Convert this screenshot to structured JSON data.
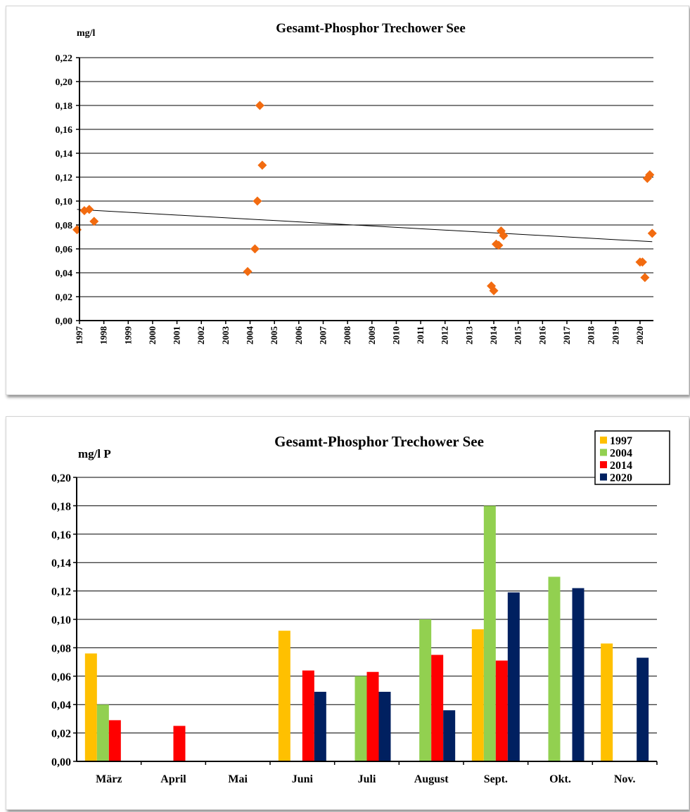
{
  "chart_data": [
    {
      "type": "scatter",
      "title": "Gesamt-Phosphor  Trechower  See",
      "ylabel": "mg/l",
      "xlabel": "",
      "ylim": [
        0,
        0.22
      ],
      "y_ticks": [
        "0,00",
        "0,02",
        "0,04",
        "0,06",
        "0,08",
        "0,10",
        "0,12",
        "0,14",
        "0,16",
        "0,18",
        "0,20",
        "0,22"
      ],
      "x_ticks": [
        "1997",
        "1998",
        "1999",
        "2000",
        "2001",
        "2002",
        "2003",
        "2004",
        "2005",
        "2006",
        "2007",
        "2008",
        "2009",
        "2010",
        "2011",
        "2012",
        "2013",
        "2014",
        "2015",
        "2016",
        "2017",
        "2018",
        "2019",
        "2020"
      ],
      "grid": true,
      "legend": "none",
      "series": [
        {
          "marker": "diamond",
          "color": "#f26b10",
          "points": [
            {
              "x": 1996.9,
              "y": 0.076
            },
            {
              "x": 1997.2,
              "y": 0.092
            },
            {
              "x": 1997.4,
              "y": 0.093
            },
            {
              "x": 1997.6,
              "y": 0.083
            },
            {
              "x": 2003.9,
              "y": 0.041
            },
            {
              "x": 2004.2,
              "y": 0.06
            },
            {
              "x": 2004.3,
              "y": 0.1
            },
            {
              "x": 2004.4,
              "y": 0.18
            },
            {
              "x": 2004.5,
              "y": 0.13
            },
            {
              "x": 2013.9,
              "y": 0.029
            },
            {
              "x": 2014.0,
              "y": 0.025
            },
            {
              "x": 2014.1,
              "y": 0.064
            },
            {
              "x": 2014.2,
              "y": 0.063
            },
            {
              "x": 2014.3,
              "y": 0.075
            },
            {
              "x": 2014.4,
              "y": 0.071
            },
            {
              "x": 2020.0,
              "y": 0.049
            },
            {
              "x": 2020.1,
              "y": 0.049
            },
            {
              "x": 2020.2,
              "y": 0.036
            },
            {
              "x": 2020.3,
              "y": 0.119
            },
            {
              "x": 2020.4,
              "y": 0.122
            },
            {
              "x": 2020.5,
              "y": 0.073
            }
          ]
        }
      ],
      "trendline": {
        "x_start": 1996.9,
        "y_start": 0.093,
        "x_end": 2020.5,
        "y_end": 0.066,
        "color": "#000000"
      }
    },
    {
      "type": "bar",
      "title": "Gesamt-Phosphor  Trechower See",
      "ylabel": "mg/l  P",
      "xlabel": "",
      "ylim": [
        0,
        0.2
      ],
      "y_ticks": [
        "0,00",
        "0,02",
        "0,04",
        "0,06",
        "0,08",
        "0,10",
        "0,12",
        "0,14",
        "0,16",
        "0,18",
        "0,20"
      ],
      "categories": [
        "März",
        "April",
        "Mai",
        "Juni",
        "Juli",
        "August",
        "Sept.",
        "Okt.",
        "Nov."
      ],
      "grid": true,
      "legend": "top-right",
      "series": [
        {
          "name": "1997",
          "color": "#ffc000",
          "values": [
            0.076,
            null,
            null,
            0.092,
            null,
            null,
            0.093,
            null,
            0.083
          ]
        },
        {
          "name": "2004",
          "color": "#92d050",
          "values": [
            0.04,
            null,
            null,
            null,
            0.06,
            0.1,
            0.18,
            0.13,
            null
          ]
        },
        {
          "name": "2014",
          "color": "#ff0000",
          "values": [
            0.029,
            0.025,
            null,
            0.064,
            0.063,
            0.075,
            0.071,
            null,
            null
          ]
        },
        {
          "name": "2020",
          "color": "#002060",
          "values": [
            null,
            null,
            null,
            0.049,
            0.049,
            0.036,
            0.119,
            0.122,
            0.073
          ]
        }
      ]
    }
  ]
}
